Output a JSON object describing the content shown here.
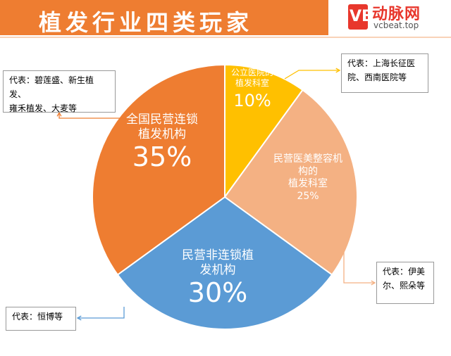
{
  "header": {
    "title": "植发行业四类玩家",
    "logo_name": "动脉网",
    "logo_url": "vcbeat.top",
    "logo_mark": "VB"
  },
  "chart_data": {
    "type": "pie",
    "title": "植发行业四类玩家",
    "slices": [
      {
        "label_line1": "公立医院的",
        "label_line2": "植发科室",
        "value": 10,
        "value_text": "10%",
        "color": "#ffc000"
      },
      {
        "label_line1": "民营医美整容机",
        "label_line2": "构的",
        "label_line3": "植发科室",
        "value": 25,
        "value_text": "25%",
        "color": "#f4b183"
      },
      {
        "label_line1": "民营非连锁植",
        "label_line2": "发机构",
        "value": 30,
        "value_text": "30%",
        "color": "#5b9bd5"
      },
      {
        "label_line1": "全国民营连锁",
        "label_line2": "植发机构",
        "value": 35,
        "value_text": "35%",
        "color": "#ee7d31"
      }
    ]
  },
  "callouts": {
    "chain": {
      "line1": "代表：碧莲盛、新生植发、",
      "line2": "雍禾植发、大麦等",
      "line_color": "#ee7d31"
    },
    "public": {
      "line1": "代表：上海长征医",
      "line2": "院、西南医院等",
      "line_color": "#ffc000"
    },
    "aesthetic": {
      "line1": "代表：伊美",
      "line2": "尔、熙朵等",
      "line_color": "#f4b183"
    },
    "nonchain": {
      "line1": "代表：恒博等",
      "line_color": "#5b9bd5"
    }
  }
}
